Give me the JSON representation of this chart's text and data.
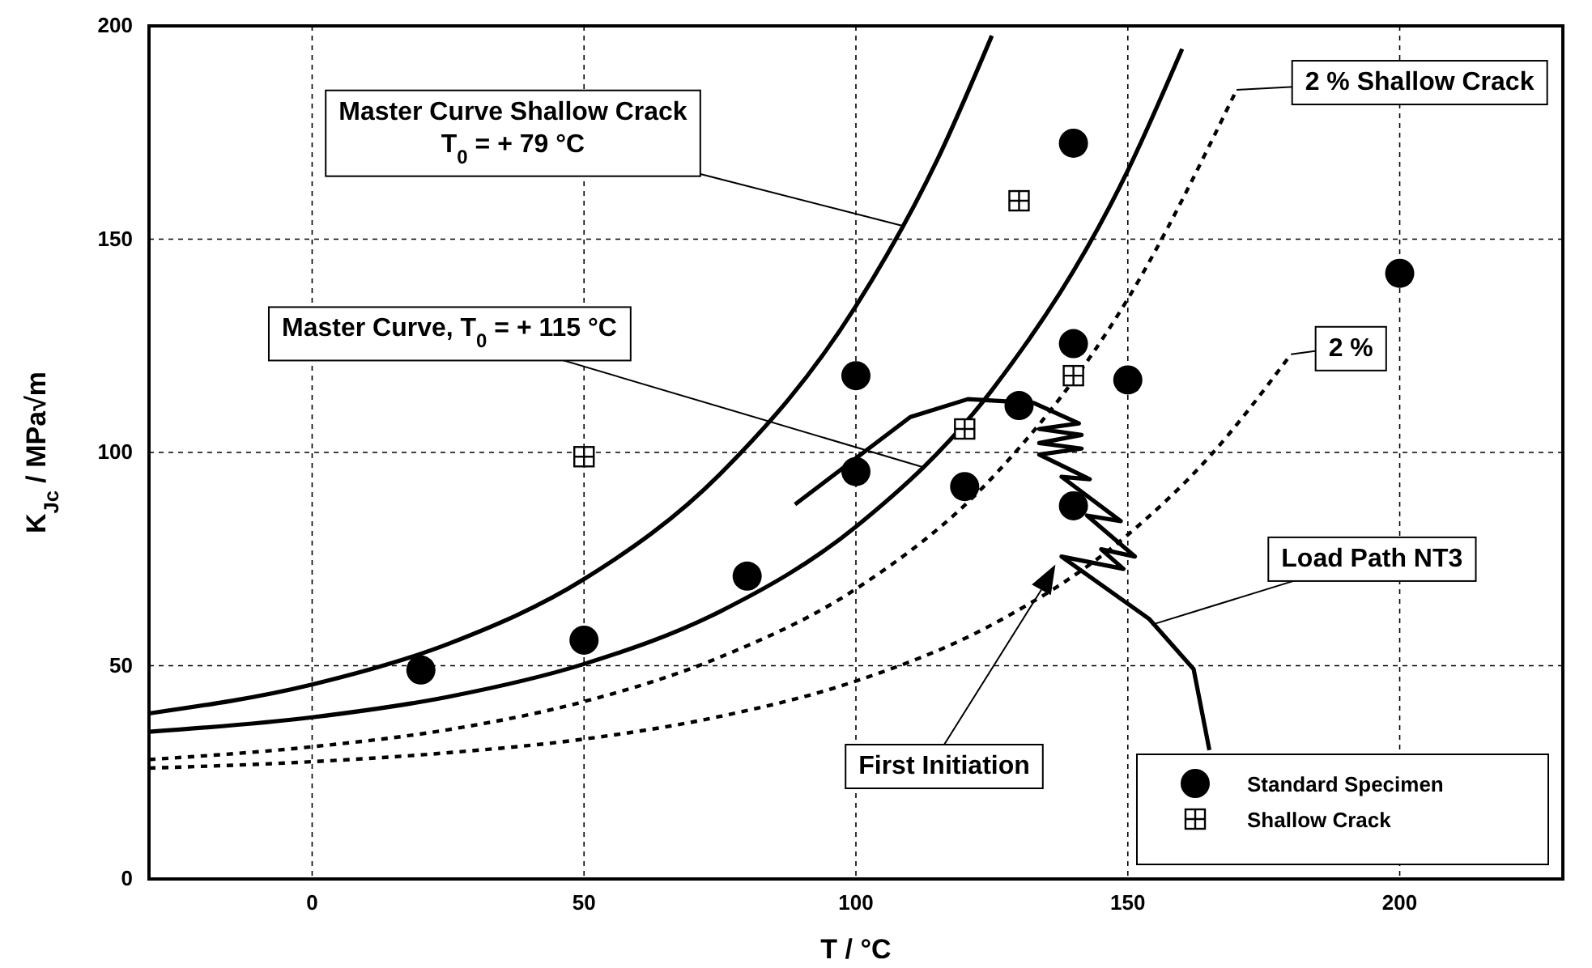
{
  "chart_data": {
    "type": "scatter",
    "xlabel": "T  / °C",
    "ylabel": "K$_{Jc}$  / MPa√m",
    "xlim": [
      -30,
      230
    ],
    "xticks": [
      0,
      50,
      100,
      150,
      200
    ],
    "ylim": [
      0,
      200
    ],
    "yticks": [
      0,
      50,
      100,
      150,
      200
    ],
    "grid": true,
    "legend": "bottom right",
    "series": [
      {
        "type": "line",
        "color": "#000000",
        "line_style": "solid",
        "marker": "none",
        "x": [
          -30,
          0,
          25,
          50,
          75,
          100,
          115,
          125
        ],
        "values": [
          38.8,
          45.6,
          55.1,
          70.3,
          94.9,
          134.3,
          168.7,
          197.7
        ]
      },
      {
        "type": "line",
        "color": "#000000",
        "line_style": "solid",
        "marker": "none",
        "x": [
          -30,
          0,
          25,
          50,
          75,
          100,
          125,
          150,
          160
        ],
        "values": [
          34.5,
          37.9,
          42.7,
          50.4,
          62.7,
          82.6,
          114.6,
          166.1,
          194.6
        ]
      },
      {
        "type": "line",
        "color": "#000000",
        "line_style": "dashed",
        "marker": "none",
        "x": [
          -30,
          0,
          25,
          50,
          75,
          100,
          125,
          150,
          170
        ],
        "values": [
          28,
          31,
          35,
          41.6,
          52,
          68,
          94,
          136,
          185
        ]
      },
      {
        "type": "line",
        "color": "#000000",
        "line_style": "dashed",
        "marker": "none",
        "x": [
          -30,
          0,
          25,
          50,
          75,
          100,
          125,
          150,
          165,
          180
        ],
        "values": [
          26,
          27.5,
          29.6,
          32.8,
          38.1,
          46.4,
          59.6,
          80.7,
          99,
          123
        ]
      },
      {
        "type": "line",
        "color": "#000000",
        "line_style": "solid",
        "marker": "none",
        "x": [
          88.8,
          110,
          120.6,
          132.7,
          141,
          133.7,
          141.5,
          133.7,
          141.5,
          133.7,
          143,
          137.8,
          148.7,
          142.5,
          151.3,
          145.1,
          149.2,
          137.8,
          153.9,
          162.1,
          165
        ],
        "values": [
          87.8,
          108.3,
          112.5,
          111.6,
          106.8,
          105.5,
          104.1,
          102.2,
          100.9,
          99.5,
          93.7,
          94.3,
          83.9,
          85.2,
          75.6,
          77.3,
          72.7,
          75.6,
          61,
          49.2,
          30.2
        ]
      },
      {
        "name": "Standard Specimen",
        "color": "#000000",
        "marker": "circle",
        "x": [
          20,
          50,
          80,
          100,
          100,
          120,
          130,
          140,
          140,
          140,
          150,
          200
        ],
        "values": [
          49,
          56,
          71,
          95.5,
          118,
          92,
          111,
          172.5,
          125.5,
          87.5,
          117,
          142
        ]
      },
      {
        "name": "Shallow Crack",
        "color": "#000000",
        "marker": "square",
        "x": [
          50,
          120,
          130,
          140
        ],
        "values": [
          99,
          105.5,
          159,
          118
        ]
      }
    ],
    "annotations": [
      {
        "text": "Master Curve Shallow Crack\nT$_{0}$ = + 79 °C",
        "x": 109,
        "y": 153
      },
      {
        "text": "Master Curve, T$_{0}$ = + 115 °C",
        "x": 112.5,
        "y": 96.5
      },
      {
        "text": "2 % Shallow Crack",
        "x": 170,
        "y": 185
      },
      {
        "text": "2 %",
        "x": 180,
        "y": 123
      },
      {
        "text": "Load Path NT3",
        "x": 154.4,
        "y": 59.6
      },
      "First Initiation"
    ]
  }
}
